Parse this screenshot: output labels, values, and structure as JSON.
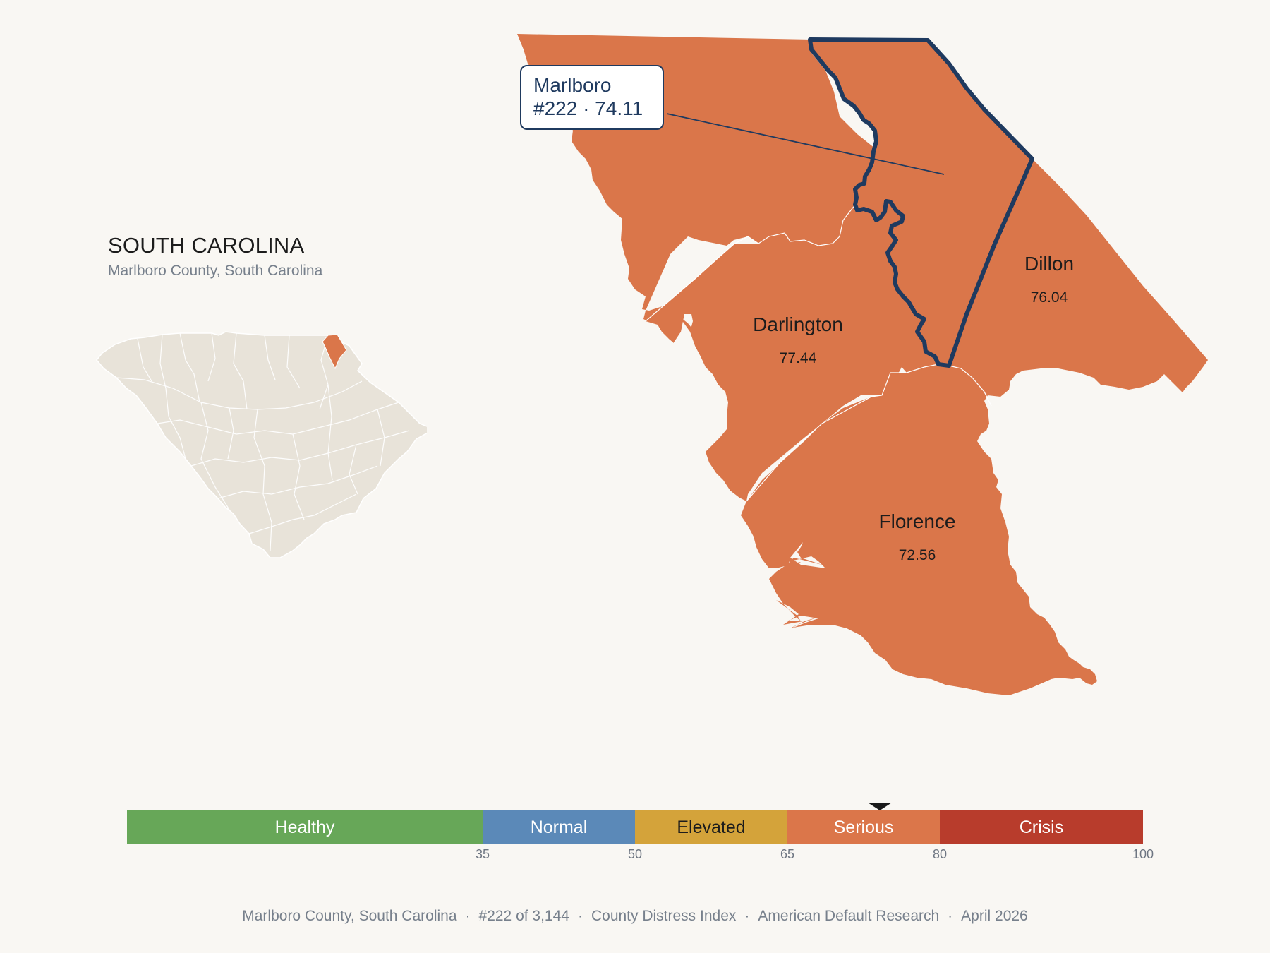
{
  "state": {
    "title": "SOUTH CAROLINA",
    "subtitle": "Marlboro County, South Carolina"
  },
  "colors": {
    "background": "#f9f7f3",
    "county_fill": "#da764a",
    "focus_outline": "#1f3a5f",
    "inset_fill": "#e8e3d9",
    "inset_highlight": "#da764a"
  },
  "callout": {
    "county": "Marlboro",
    "rank_score": "#222 · 74.11"
  },
  "counties": [
    {
      "name": "Marlboro",
      "score": "74.11",
      "category": "Serious",
      "focus": true
    },
    {
      "name": "Darlington",
      "score": "77.44",
      "category": "Serious"
    },
    {
      "name": "Dillon",
      "score": "76.04",
      "category": "Serious"
    },
    {
      "name": "Florence",
      "score": "72.56",
      "category": "Serious"
    }
  ],
  "legend": {
    "segments": [
      {
        "label": "Healthy",
        "from": 0,
        "to": 35,
        "color": "#67a758"
      },
      {
        "label": "Normal",
        "from": 35,
        "to": 50,
        "color": "#5b89b8"
      },
      {
        "label": "Elevated",
        "from": 50,
        "to": 65,
        "color": "#d4a33a"
      },
      {
        "label": "Serious",
        "from": 65,
        "to": 80,
        "color": "#db764a"
      },
      {
        "label": "Crisis",
        "from": 80,
        "to": 100,
        "color": "#b83c2c"
      }
    ],
    "ticks": [
      "35",
      "50",
      "65",
      "80",
      "100"
    ],
    "marker_value": 74.11
  },
  "footer": {
    "county": "Marlboro County, South Carolina",
    "rank": "#222 of 3,144",
    "index": "County Distress Index",
    "source": "American Default Research",
    "date": "April 2026"
  }
}
